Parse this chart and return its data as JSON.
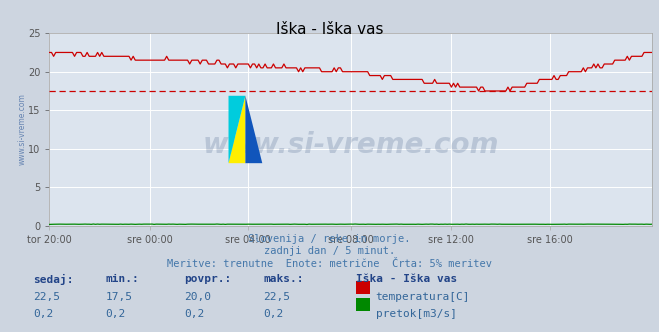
{
  "title": "Iška - Iška vas",
  "background_color": "#cdd5e0",
  "plot_bg_color": "#dce4ee",
  "grid_color": "#ffffff",
  "x_labels": [
    "tor 20:00",
    "sre 00:00",
    "sre 04:00",
    "sre 08:00",
    "sre 12:00",
    "sre 16:00"
  ],
  "x_ticks_frac": [
    0.0,
    0.1667,
    0.3333,
    0.5,
    0.6667,
    0.8333
  ],
  "total_points": 289,
  "ylim": [
    0,
    25
  ],
  "yticks": [
    0,
    5,
    10,
    15,
    20,
    25
  ],
  "temp_color": "#cc0000",
  "flow_color": "#008800",
  "avg_line_color": "#cc0000",
  "avg_line_y": 17.5,
  "watermark_text": "www.si-vreme.com",
  "watermark_color": "#1a3a6b",
  "watermark_alpha": 0.18,
  "subtitle_lines": [
    "Slovenija / reke in morje.",
    "zadnji dan / 5 minut.",
    "Meritve: trenutne  Enote: metrične  Črta: 5% meritev"
  ],
  "subtitle_color": "#4477aa",
  "table_color": "#336699",
  "table_bold_color": "#224488",
  "table_headers": [
    "sedaj:",
    "min.:",
    "povpr.:",
    "maks.:"
  ],
  "row1_values": [
    "22,5",
    "17,5",
    "20,0",
    "22,5"
  ],
  "row2_values": [
    "0,2",
    "0,2",
    "0,2",
    "0,2"
  ],
  "legend_title": "Iška - Iška vas",
  "legend_label1": "temperatura[C]",
  "legend_label2": "pretok[m3/s]",
  "legend_color1": "#cc0000",
  "legend_color2": "#008800",
  "tick_color": "#555555",
  "title_color": "#000000",
  "spine_color": "#aaaaaa",
  "left_label": "www.si-vreme.com",
  "left_label_color": "#5577aa"
}
